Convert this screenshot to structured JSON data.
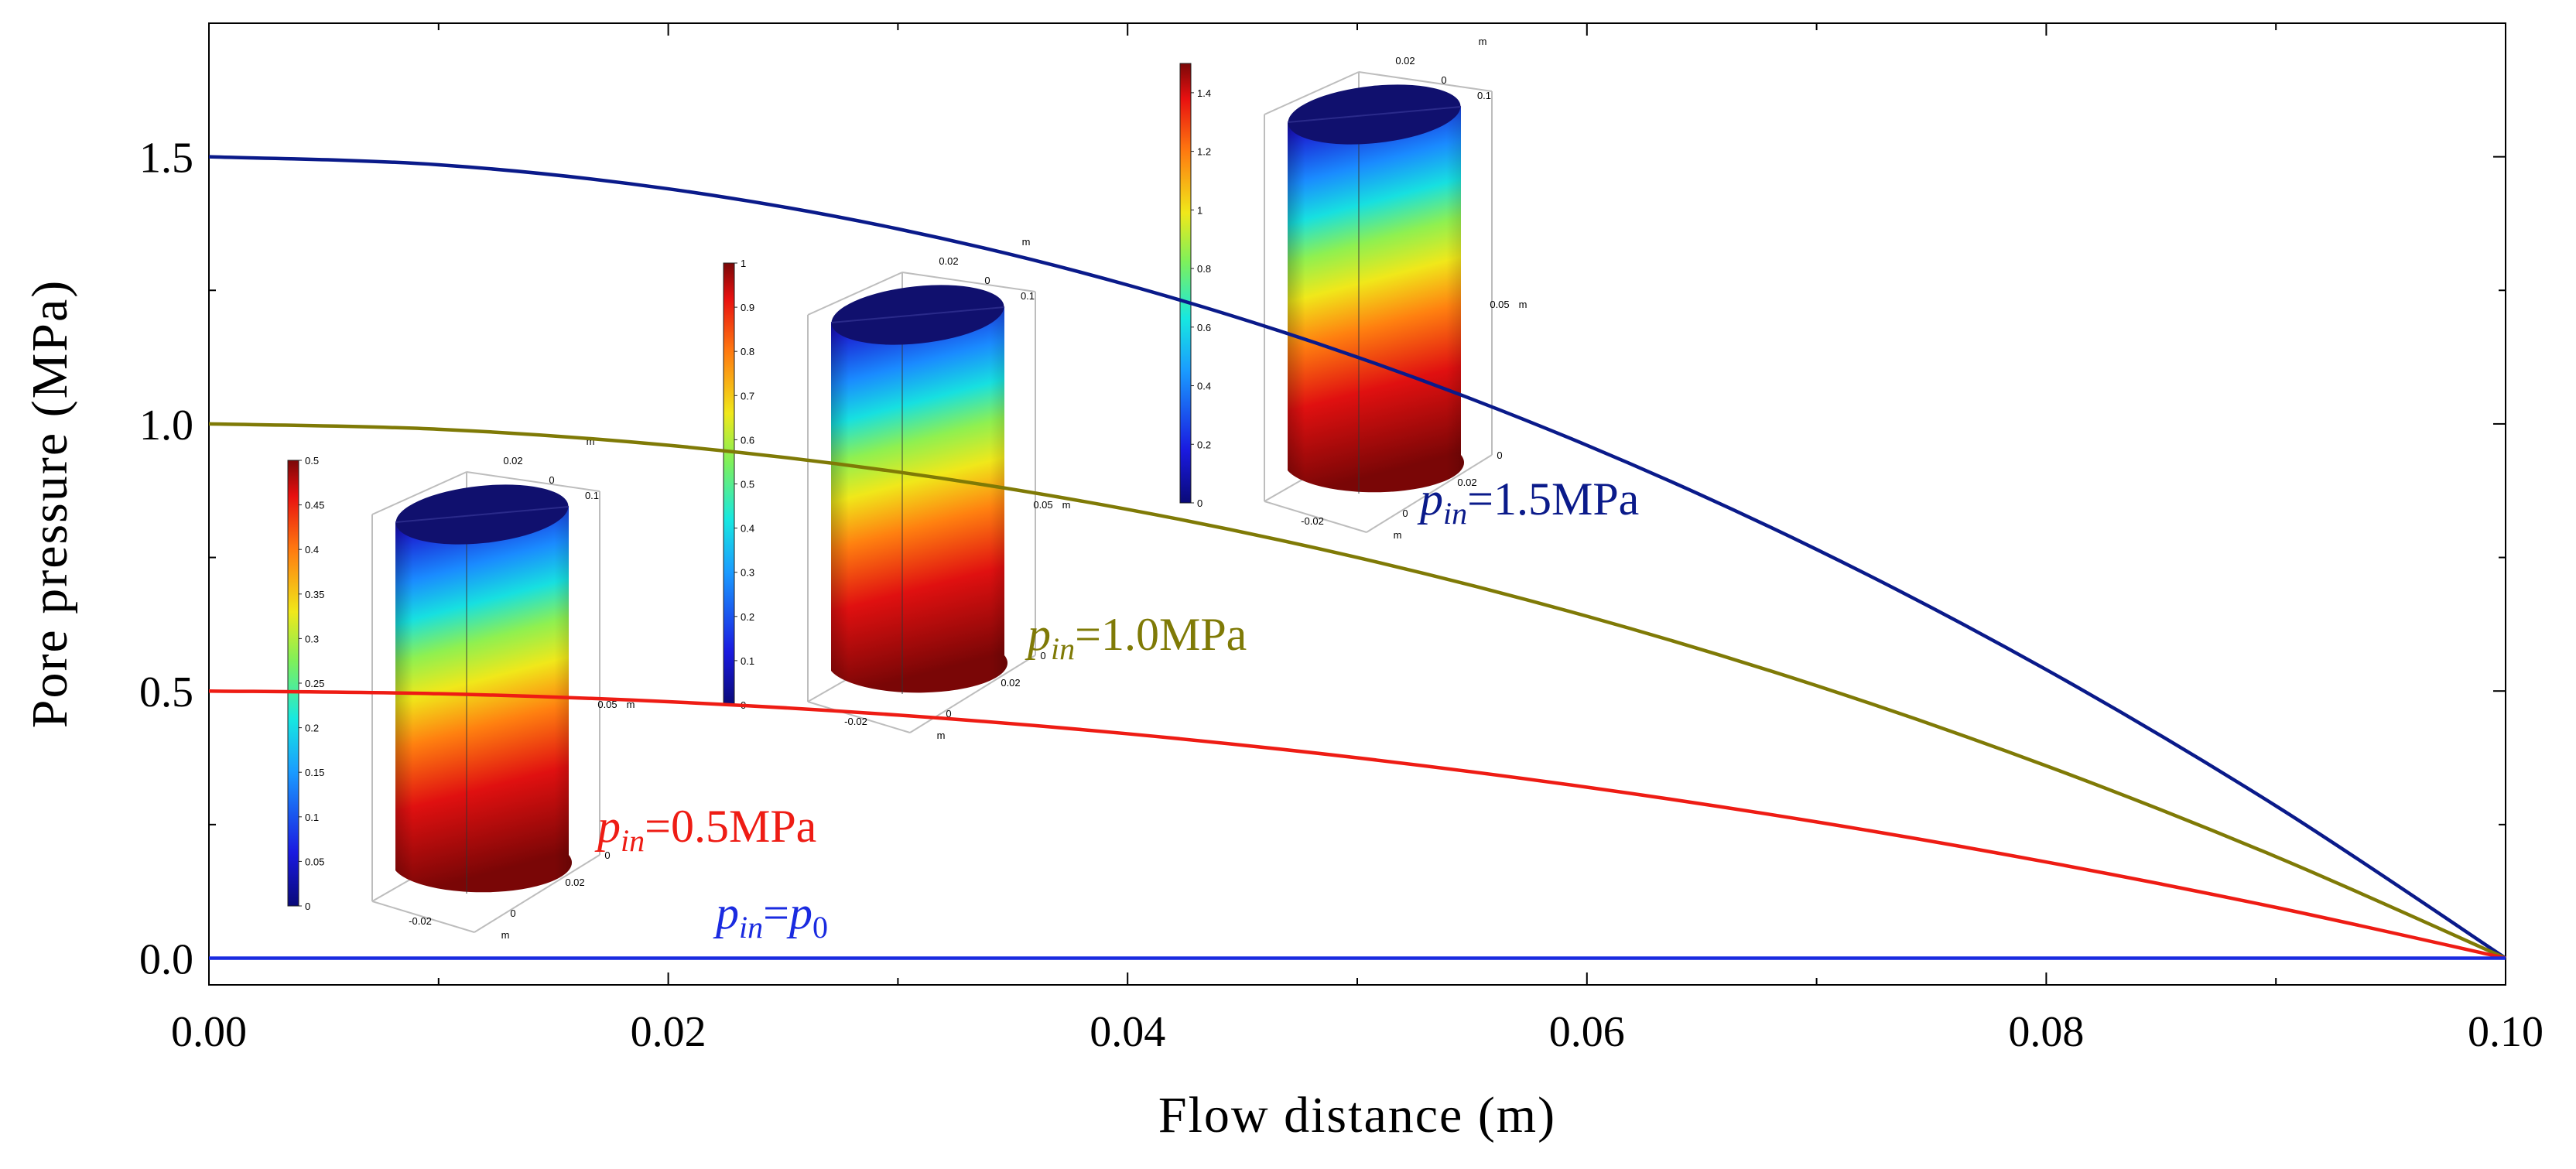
{
  "chart_data": {
    "type": "line",
    "title": "",
    "xlabel": "Flow distance (m)",
    "ylabel": "Pore pressure (MPa)",
    "xlim": [
      0.0,
      0.1
    ],
    "ylim": [
      -0.05,
      1.75
    ],
    "x_ticks": [
      0.0,
      0.02,
      0.04,
      0.06,
      0.08,
      0.1
    ],
    "x_tick_labels": [
      "0.00",
      "0.02",
      "0.04",
      "0.06",
      "0.08",
      "0.10"
    ],
    "y_ticks": [
      0.0,
      0.5,
      1.0,
      1.5
    ],
    "y_tick_labels": [
      "0.0",
      "0.5",
      "1.0",
      "1.5"
    ],
    "grid": false,
    "x": [
      0.0,
      0.01,
      0.02,
      0.03,
      0.04,
      0.05,
      0.06,
      0.07,
      0.08,
      0.09,
      0.1
    ],
    "series": [
      {
        "name": "p_in=1.5MPa",
        "label_base": "p",
        "label_sub": "in",
        "label_rest": "=1.5MPa",
        "color": "#0a1a8a",
        "values": [
          1.5,
          1.485,
          1.44,
          1.365,
          1.26,
          1.125,
          0.96,
          0.765,
          0.54,
          0.285,
          0.0
        ]
      },
      {
        "name": "p_in=1.0MPa",
        "label_base": "p",
        "label_sub": "in",
        "label_rest": "=1.0MPa",
        "color": "#7f7a06",
        "values": [
          1.0,
          0.99,
          0.96,
          0.91,
          0.84,
          0.75,
          0.64,
          0.51,
          0.36,
          0.19,
          0.0
        ]
      },
      {
        "name": "p_in=0.5MPa",
        "label_base": "p",
        "label_sub": "in",
        "label_rest": "=0.5MPa",
        "color": "#ee1c14",
        "values": [
          0.5,
          0.495,
          0.48,
          0.455,
          0.42,
          0.375,
          0.32,
          0.255,
          0.18,
          0.095,
          0.0
        ]
      },
      {
        "name": "p_in=p_0",
        "label_base": "p",
        "label_sub": "in",
        "label_rest": "=p",
        "label_rest_sub": "0",
        "color": "#1a2be0",
        "values": [
          0,
          0,
          0,
          0,
          0,
          0,
          0,
          0,
          0,
          0,
          0
        ]
      }
    ],
    "insets": [
      {
        "name": "inset-0.5",
        "colorbar_max": 0.5,
        "colorbar_ticks": [
          "0",
          "0.05",
          "0.1",
          "0.15",
          "0.2",
          "0.25",
          "0.3",
          "0.35",
          "0.4",
          "0.45",
          "0.5"
        ],
        "axis_labels": [
          "0.02",
          "0",
          "0.1",
          "m",
          "0.05",
          "m",
          "0",
          "0.02",
          "0",
          "-0.02",
          "m"
        ]
      },
      {
        "name": "inset-1.0",
        "colorbar_max": 1.0,
        "colorbar_ticks": [
          "0",
          "0.1",
          "0.2",
          "0.3",
          "0.4",
          "0.5",
          "0.6",
          "0.7",
          "0.8",
          "0.9",
          "1"
        ],
        "axis_labels": [
          "0.02",
          "0",
          "0.1",
          "m",
          "0.05",
          "m",
          "0",
          "0.02",
          "0",
          "-0.02",
          "m"
        ]
      },
      {
        "name": "inset-1.5",
        "colorbar_max": 1.5,
        "colorbar_ticks": [
          "0",
          "0.2",
          "0.4",
          "0.6",
          "0.8",
          "1",
          "1.2",
          "1.4"
        ],
        "axis_labels": [
          "0.02",
          "0",
          "0.1",
          "m",
          "0.05",
          "m",
          "0",
          "0.02",
          "0",
          "-0.02",
          "m"
        ]
      }
    ]
  }
}
